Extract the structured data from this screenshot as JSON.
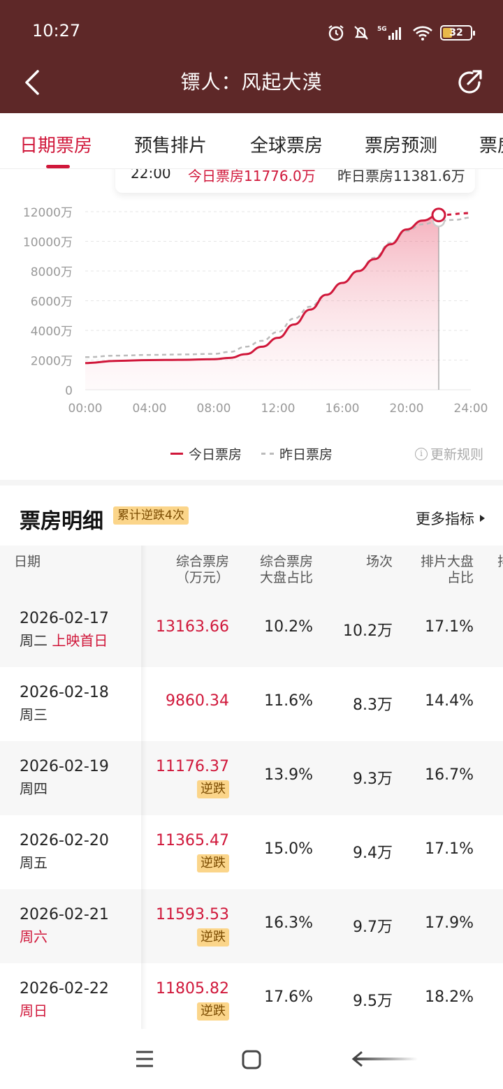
{
  "status_bar": {
    "time": "10:27",
    "battery": "32",
    "network": "5G"
  },
  "header": {
    "title": "镖人：风起大漠",
    "back_icon": "chevron-left-icon",
    "share_icon": "share-icon"
  },
  "tabs": [
    {
      "label": "日期票房",
      "active": true
    },
    {
      "label": "预售排片",
      "active": false
    },
    {
      "label": "全球票房",
      "active": false
    },
    {
      "label": "票房预测",
      "active": false
    },
    {
      "label": "票房",
      "active": false
    }
  ],
  "tooltip": {
    "time": "22:00",
    "today": "今日票房11776.0万",
    "yesterday": "昨日票房11381.6万"
  },
  "chart_data": {
    "type": "line",
    "x_ticks": [
      "00:00",
      "04:00",
      "08:00",
      "12:00",
      "16:00",
      "20:00",
      "24:00"
    ],
    "y_ticks": [
      "0",
      "2000万",
      "4000万",
      "6000万",
      "8000万",
      "10000万",
      "12000万"
    ],
    "ylim": [
      0,
      12000
    ],
    "xlim": [
      0,
      24
    ],
    "series": [
      {
        "name": "今日票房",
        "color": "#d0173a",
        "style": "solid",
        "x": [
          0,
          2,
          4,
          6,
          8,
          9,
          10,
          11,
          12,
          13,
          14,
          15,
          16,
          17,
          18,
          19,
          20,
          21,
          22
        ],
        "values": [
          1800,
          1950,
          2000,
          2020,
          2060,
          2150,
          2400,
          2900,
          3500,
          4400,
          5400,
          6400,
          7200,
          8000,
          8800,
          9800,
          10800,
          11400,
          11776
        ]
      },
      {
        "name": "昨日票房",
        "color": "#bbbbbb",
        "style": "dashed",
        "x": [
          0,
          2,
          4,
          6,
          8,
          9,
          10,
          11,
          12,
          13,
          14,
          15,
          16,
          17,
          18,
          19,
          20,
          21,
          22,
          23,
          24
        ],
        "values": [
          2200,
          2300,
          2350,
          2380,
          2420,
          2550,
          2900,
          3300,
          3900,
          4800,
          5600,
          6400,
          7200,
          8000,
          8900,
          9900,
          10700,
          11150,
          11381.6,
          11450,
          11600
        ]
      }
    ],
    "marker_x": 22,
    "forecast": {
      "x": [
        22,
        24
      ],
      "values": [
        11776,
        11900
      ]
    }
  },
  "legend": {
    "today": "今日票房",
    "yesterday": "昨日票房"
  },
  "update_rules": "更新规则",
  "detail": {
    "title": "票房明细",
    "badge": "累计逆跌4次",
    "more": "更多指标"
  },
  "table": {
    "headers": {
      "date": "日期",
      "gross_l1": "综合票房",
      "gross_l2": "（万元）",
      "share_l1": "综合票房",
      "share_l2": "大盘占比",
      "shows": "场次",
      "sched_l1": "排片大盘",
      "sched_l2": "占比",
      "extra": "排"
    },
    "rows": [
      {
        "date": "2026-02-17",
        "weekday": "周二",
        "weekday_red": false,
        "note": "上映首日",
        "gross": "13163.66",
        "tag": "",
        "share": "10.2%",
        "shows": "10.2万",
        "sched": "17.1%"
      },
      {
        "date": "2026-02-18",
        "weekday": "周三",
        "weekday_red": false,
        "note": "",
        "gross": "9860.34",
        "tag": "",
        "share": "11.6%",
        "shows": "8.3万",
        "sched": "14.4%"
      },
      {
        "date": "2026-02-19",
        "weekday": "周四",
        "weekday_red": false,
        "note": "",
        "gross": "11176.37",
        "tag": "逆跌",
        "share": "13.9%",
        "shows": "9.3万",
        "sched": "16.7%"
      },
      {
        "date": "2026-02-20",
        "weekday": "周五",
        "weekday_red": false,
        "note": "",
        "gross": "11365.47",
        "tag": "逆跌",
        "share": "15.0%",
        "shows": "9.4万",
        "sched": "17.1%"
      },
      {
        "date": "2026-02-21",
        "weekday": "周六",
        "weekday_red": true,
        "note": "",
        "gross": "11593.53",
        "tag": "逆跌",
        "share": "16.3%",
        "shows": "9.7万",
        "sched": "17.9%"
      },
      {
        "date": "2026-02-22",
        "weekday": "周日",
        "weekday_red": true,
        "note": "",
        "gross": "11805.82",
        "tag": "逆跌",
        "share": "17.6%",
        "shows": "9.5万",
        "sched": "18.2%"
      }
    ]
  },
  "colors": {
    "header_bg": "#5e2828",
    "accent": "#d0173a",
    "badge_bg": "#fbd58a"
  }
}
